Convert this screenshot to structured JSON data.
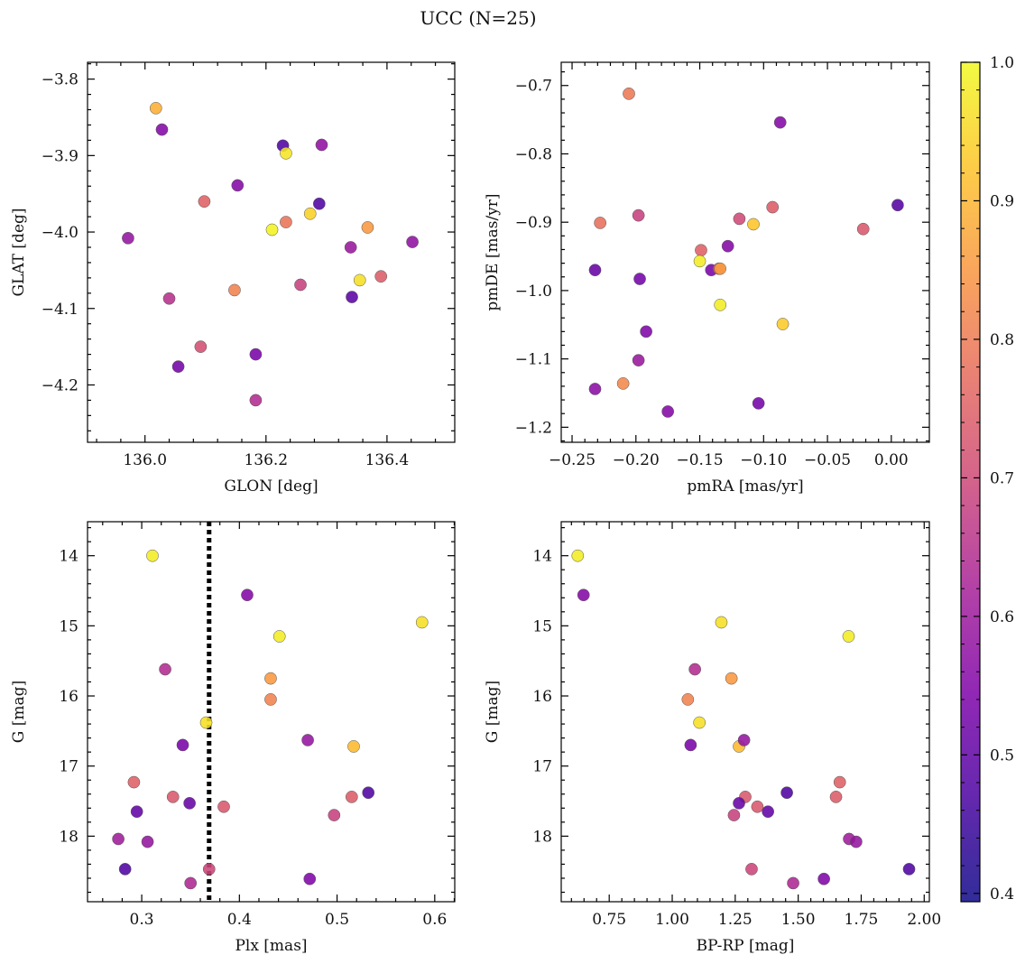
{
  "figure_title": "UCC (N=25)",
  "colorbar": {
    "range": [
      0.394,
      1.0
    ],
    "ticks": [
      "0.4",
      "0.5",
      "0.6",
      "0.7",
      "0.8",
      "0.9",
      "1.0"
    ],
    "tick_values": [
      0.4,
      0.5,
      0.6,
      0.7,
      0.8,
      0.9,
      1.0
    ],
    "colormap": "plasma"
  },
  "chart_data": [
    {
      "type": "scatter",
      "xlabel": "GLON [deg]",
      "ylabel": "GLAT [deg]",
      "xlim": [
        135.905,
        136.512
      ],
      "ylim": [
        -4.275,
        -3.778
      ],
      "xticks": [
        136.0,
        136.2,
        136.4
      ],
      "xtick_labels": [
        "136.0",
        "136.2",
        "136.4"
      ],
      "yticks": [
        -4.2,
        -4.1,
        -4.0,
        -3.9,
        -3.8
      ],
      "ytick_labels": [
        "−4.2",
        "−4.1",
        "−4.0",
        "−3.9",
        "−3.8"
      ],
      "points": [
        {
          "x": 136.018,
          "y": -3.838,
          "c": 0.88
        },
        {
          "x": 136.028,
          "y": -3.866,
          "c": 0.52
        },
        {
          "x": 136.228,
          "y": -3.887,
          "c": 0.43
        },
        {
          "x": 136.233,
          "y": -3.897,
          "c": 0.97
        },
        {
          "x": 136.292,
          "y": -3.886,
          "c": 0.54
        },
        {
          "x": 136.153,
          "y": -3.939,
          "c": 0.52
        },
        {
          "x": 136.098,
          "y": -3.96,
          "c": 0.73
        },
        {
          "x": 136.288,
          "y": -3.963,
          "c": 0.43
        },
        {
          "x": 136.273,
          "y": -3.976,
          "c": 0.94
        },
        {
          "x": 136.233,
          "y": -3.987,
          "c": 0.77
        },
        {
          "x": 136.368,
          "y": -3.994,
          "c": 0.84
        },
        {
          "x": 136.21,
          "y": -3.997,
          "c": 0.99
        },
        {
          "x": 135.972,
          "y": -4.008,
          "c": 0.55
        },
        {
          "x": 136.442,
          "y": -4.013,
          "c": 0.54
        },
        {
          "x": 136.34,
          "y": -4.02,
          "c": 0.56
        },
        {
          "x": 136.39,
          "y": -4.058,
          "c": 0.72
        },
        {
          "x": 136.355,
          "y": -4.063,
          "c": 0.96
        },
        {
          "x": 136.257,
          "y": -4.069,
          "c": 0.66
        },
        {
          "x": 136.148,
          "y": -4.076,
          "c": 0.8
        },
        {
          "x": 136.04,
          "y": -4.087,
          "c": 0.62
        },
        {
          "x": 136.342,
          "y": -4.085,
          "c": 0.45
        },
        {
          "x": 136.092,
          "y": -4.15,
          "c": 0.69
        },
        {
          "x": 136.183,
          "y": -4.16,
          "c": 0.5
        },
        {
          "x": 136.055,
          "y": -4.176,
          "c": 0.49
        },
        {
          "x": 136.183,
          "y": -4.22,
          "c": 0.61
        }
      ]
    },
    {
      "type": "scatter",
      "xlabel": "pmRA [mas/yr]",
      "ylabel": "pmDE [mas/yr]",
      "xlim": [
        -0.2585,
        0.0298
      ],
      "ylim": [
        -1.222,
        -0.666
      ],
      "xticks": [
        -0.25,
        -0.2,
        -0.15,
        -0.1,
        -0.05,
        0.0
      ],
      "xtick_labels": [
        "−0.25",
        "−0.20",
        "−0.15",
        "−0.10",
        "−0.05",
        "0.00"
      ],
      "yticks": [
        -1.2,
        -1.1,
        -1.0,
        -0.9,
        -0.8,
        -0.7
      ],
      "ytick_labels": [
        "−1.2",
        "−1.1",
        "−1.0",
        "−0.9",
        "−0.8",
        "−0.7"
      ],
      "points": [
        {
          "x": -0.2055,
          "y": -0.712,
          "c": 0.78
        },
        {
          "x": -0.087,
          "y": -0.754,
          "c": 0.52
        },
        {
          "x": 0.005,
          "y": -0.875,
          "c": 0.44
        },
        {
          "x": -0.093,
          "y": -0.878,
          "c": 0.72
        },
        {
          "x": -0.119,
          "y": -0.895,
          "c": 0.68
        },
        {
          "x": -0.198,
          "y": -0.89,
          "c": 0.66
        },
        {
          "x": -0.228,
          "y": -0.901,
          "c": 0.76
        },
        {
          "x": -0.108,
          "y": -0.903,
          "c": 0.92
        },
        {
          "x": -0.022,
          "y": -0.91,
          "c": 0.71
        },
        {
          "x": -0.128,
          "y": -0.935,
          "c": 0.52
        },
        {
          "x": -0.149,
          "y": -0.941,
          "c": 0.73
        },
        {
          "x": -0.15,
          "y": -0.957,
          "c": 0.98
        },
        {
          "x": -0.232,
          "y": -0.97,
          "c": 0.47
        },
        {
          "x": -0.141,
          "y": -0.97,
          "c": 0.5
        },
        {
          "x": -0.135,
          "y": -0.968,
          "c": 0.74
        },
        {
          "x": -0.134,
          "y": -0.968,
          "c": 0.85
        },
        {
          "x": -0.197,
          "y": -0.983,
          "c": 0.49
        },
        {
          "x": -0.134,
          "y": -1.021,
          "c": 0.98
        },
        {
          "x": -0.085,
          "y": -1.049,
          "c": 0.93
        },
        {
          "x": -0.192,
          "y": -1.06,
          "c": 0.51
        },
        {
          "x": -0.198,
          "y": -1.102,
          "c": 0.56
        },
        {
          "x": -0.21,
          "y": -1.136,
          "c": 0.81
        },
        {
          "x": -0.232,
          "y": -1.144,
          "c": 0.53
        },
        {
          "x": -0.104,
          "y": -1.165,
          "c": 0.49
        },
        {
          "x": -0.175,
          "y": -1.177,
          "c": 0.52
        }
      ]
    },
    {
      "type": "scatter",
      "xlabel": "Plx [mas]",
      "ylabel": "G [mag]",
      "xlim": [
        0.2445,
        0.6205
      ],
      "ylim": [
        18.935,
        13.515
      ],
      "inverted_y": true,
      "vline_x": 0.369,
      "xticks": [
        0.3,
        0.4,
        0.5,
        0.6
      ],
      "xtick_labels": [
        "0.3",
        "0.4",
        "0.5",
        "0.6"
      ],
      "yticks": [
        14,
        15,
        16,
        17,
        18
      ],
      "ytick_labels": [
        "14",
        "15",
        "16",
        "17",
        "18"
      ],
      "points": [
        {
          "x": 0.311,
          "y": 14.0,
          "c": 0.98
        },
        {
          "x": 0.408,
          "y": 14.56,
          "c": 0.52
        },
        {
          "x": 0.587,
          "y": 14.95,
          "c": 0.96
        },
        {
          "x": 0.441,
          "y": 15.15,
          "c": 0.98
        },
        {
          "x": 0.324,
          "y": 15.62,
          "c": 0.61
        },
        {
          "x": 0.432,
          "y": 15.75,
          "c": 0.84
        },
        {
          "x": 0.432,
          "y": 16.05,
          "c": 0.8
        },
        {
          "x": 0.366,
          "y": 16.38,
          "c": 0.96
        },
        {
          "x": 0.342,
          "y": 16.7,
          "c": 0.5
        },
        {
          "x": 0.517,
          "y": 16.72,
          "c": 0.9
        },
        {
          "x": 0.47,
          "y": 16.63,
          "c": 0.55
        },
        {
          "x": 0.292,
          "y": 17.23,
          "c": 0.73
        },
        {
          "x": 0.532,
          "y": 17.38,
          "c": 0.43
        },
        {
          "x": 0.332,
          "y": 17.44,
          "c": 0.71
        },
        {
          "x": 0.515,
          "y": 17.44,
          "c": 0.72
        },
        {
          "x": 0.349,
          "y": 17.53,
          "c": 0.47
        },
        {
          "x": 0.384,
          "y": 17.58,
          "c": 0.71
        },
        {
          "x": 0.295,
          "y": 17.65,
          "c": 0.46
        },
        {
          "x": 0.497,
          "y": 17.7,
          "c": 0.66
        },
        {
          "x": 0.276,
          "y": 18.04,
          "c": 0.57
        },
        {
          "x": 0.306,
          "y": 18.08,
          "c": 0.55
        },
        {
          "x": 0.283,
          "y": 18.47,
          "c": 0.43
        },
        {
          "x": 0.369,
          "y": 18.47,
          "c": 0.67
        },
        {
          "x": 0.472,
          "y": 18.61,
          "c": 0.51
        },
        {
          "x": 0.35,
          "y": 18.67,
          "c": 0.6
        }
      ]
    },
    {
      "type": "scatter",
      "xlabel": "BP-RP [mag]",
      "ylabel": "G [mag]",
      "xlim": [
        0.5595,
        2.0205
      ],
      "ylim": [
        18.935,
        13.515
      ],
      "inverted_y": true,
      "xticks": [
        0.75,
        1.0,
        1.25,
        1.5,
        1.75,
        2.0
      ],
      "xtick_labels": [
        "0.75",
        "1.00",
        "1.25",
        "1.50",
        "1.75",
        "2.00"
      ],
      "yticks": [
        14,
        15,
        16,
        17,
        18
      ],
      "ytick_labels": [
        "14",
        "15",
        "16",
        "17",
        "18"
      ],
      "points": [
        {
          "x": 0.625,
          "y": 14.0,
          "c": 0.98
        },
        {
          "x": 0.648,
          "y": 14.56,
          "c": 0.52
        },
        {
          "x": 1.195,
          "y": 14.95,
          "c": 0.96
        },
        {
          "x": 1.7,
          "y": 15.15,
          "c": 0.98
        },
        {
          "x": 1.09,
          "y": 15.62,
          "c": 0.61
        },
        {
          "x": 1.235,
          "y": 15.75,
          "c": 0.84
        },
        {
          "x": 1.062,
          "y": 16.05,
          "c": 0.8
        },
        {
          "x": 1.108,
          "y": 16.38,
          "c": 0.96
        },
        {
          "x": 1.073,
          "y": 16.7,
          "c": 0.5
        },
        {
          "x": 1.265,
          "y": 16.72,
          "c": 0.9
        },
        {
          "x": 1.285,
          "y": 16.63,
          "c": 0.55
        },
        {
          "x": 1.665,
          "y": 17.23,
          "c": 0.73
        },
        {
          "x": 1.455,
          "y": 17.38,
          "c": 0.43
        },
        {
          "x": 1.29,
          "y": 17.44,
          "c": 0.71
        },
        {
          "x": 1.65,
          "y": 17.44,
          "c": 0.72
        },
        {
          "x": 1.265,
          "y": 17.53,
          "c": 0.47
        },
        {
          "x": 1.338,
          "y": 17.58,
          "c": 0.71
        },
        {
          "x": 1.38,
          "y": 17.65,
          "c": 0.46
        },
        {
          "x": 1.245,
          "y": 17.7,
          "c": 0.66
        },
        {
          "x": 1.702,
          "y": 18.04,
          "c": 0.57
        },
        {
          "x": 1.73,
          "y": 18.08,
          "c": 0.55
        },
        {
          "x": 1.94,
          "y": 18.47,
          "c": 0.43
        },
        {
          "x": 1.315,
          "y": 18.47,
          "c": 0.67
        },
        {
          "x": 1.602,
          "y": 18.61,
          "c": 0.51
        },
        {
          "x": 1.48,
          "y": 18.67,
          "c": 0.6
        }
      ]
    }
  ]
}
